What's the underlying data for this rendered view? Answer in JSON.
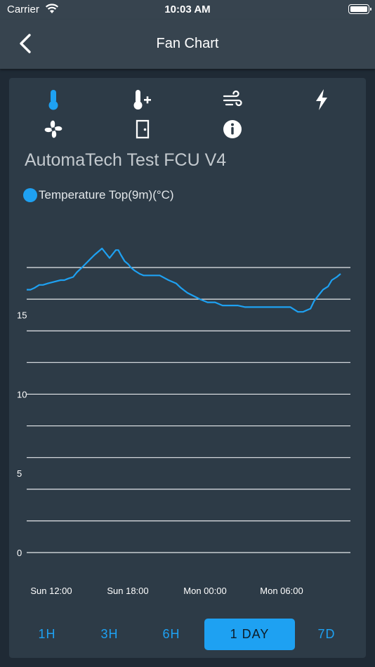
{
  "status_bar": {
    "carrier": "Carrier",
    "time": "10:03 AM"
  },
  "nav": {
    "title": "Fan Chart"
  },
  "toolbar": {
    "icons": [
      "thermometer-icon",
      "thermometer-plus-icon",
      "wind-icon",
      "lightning-icon",
      "fan-icon",
      "door-icon",
      "info-icon"
    ],
    "active_icon": "thermometer-icon"
  },
  "device": {
    "name": "AutomaTech Test FCU V4"
  },
  "legend": {
    "label": "Temperature Top(9m)(°C)",
    "color": "#1EA1F2"
  },
  "chart_data": {
    "type": "line",
    "title": "",
    "xlabel": "",
    "ylabel": "",
    "ylim": [
      0,
      18
    ],
    "y_ticks": [
      {
        "value": 0,
        "label": "0"
      },
      {
        "value": 5,
        "label": "5"
      },
      {
        "value": 10,
        "label": "10"
      },
      {
        "value": 15,
        "label": "15"
      }
    ],
    "x_ticks": [
      {
        "value": 1,
        "label": "Sun 12:00"
      },
      {
        "value": 7,
        "label": "Sun 18:00"
      },
      {
        "value": 13,
        "label": "Mon 00:00"
      },
      {
        "value": 19,
        "label": "Mon 06:00"
      }
    ],
    "grid": true,
    "series": [
      {
        "color": "#1EA1F2",
        "x": [
          0,
          0.3,
          0.6,
          1.0,
          1.3,
          1.7,
          2.2,
          2.7,
          3.0,
          3.3,
          3.7,
          4.0,
          4.4,
          4.9,
          5.4,
          6.0,
          6.6,
          7.1,
          7.3,
          7.5,
          7.8,
          8.1,
          8.3,
          8.6,
          9.0,
          9.3,
          9.7,
          10.1,
          10.6,
          11.3,
          11.9,
          12.3,
          12.8,
          13.3,
          13.8,
          14.4,
          15.0,
          15.6,
          16.2,
          16.8,
          17.4,
          18.0,
          18.8,
          19.6,
          20.4,
          21.0,
          21.6,
          22.0,
          22.3,
          22.6,
          22.9,
          23.1,
          23.3,
          23.6,
          24.0,
          24.3,
          24.7,
          25.0
        ],
        "values": [
          16.6,
          16.6,
          16.7,
          16.9,
          16.9,
          17.0,
          17.1,
          17.2,
          17.2,
          17.3,
          17.4,
          17.7,
          18.0,
          18.4,
          18.8,
          19.2,
          18.6,
          19.1,
          19.1,
          18.8,
          18.4,
          18.2,
          18.0,
          17.8,
          17.6,
          17.5,
          17.5,
          17.5,
          17.5,
          17.2,
          17.0,
          16.7,
          16.4,
          16.2,
          16.0,
          15.8,
          15.8,
          15.6,
          15.6,
          15.6,
          15.5,
          15.5,
          15.5,
          15.5,
          15.5,
          15.5,
          15.2,
          15.2,
          15.3,
          15.4,
          15.9,
          16.1,
          16.3,
          16.6,
          16.8,
          17.2,
          17.4,
          17.6
        ]
      }
    ]
  },
  "range_buttons": [
    {
      "label": "1H"
    },
    {
      "label": "3H"
    },
    {
      "label": "6H"
    },
    {
      "label": "1 DAY"
    },
    {
      "label": "7D"
    }
  ],
  "selected_range": "1 DAY"
}
